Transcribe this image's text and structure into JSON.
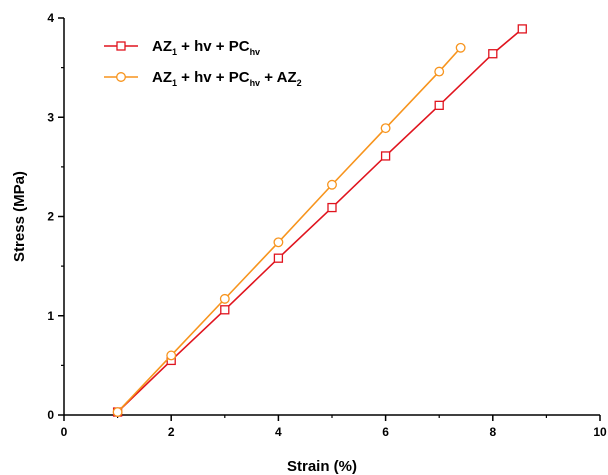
{
  "chart_data": {
    "type": "line",
    "xlabel": "Strain (%)",
    "ylabel": "Stress (MPa)",
    "xlim": [
      0,
      10
    ],
    "ylim": [
      0,
      4
    ],
    "xticks": [
      "0",
      "2",
      "4",
      "6",
      "8",
      "10"
    ],
    "yticks": [
      "0",
      "1",
      "2",
      "3",
      "4"
    ],
    "grid": false,
    "legend_position": "top-left",
    "series": [
      {
        "legend": {
          "base": "AZ",
          "sub1": "1",
          "mid": " + hv + PC",
          "sub2": "hv",
          "tail": "",
          "sub3": ""
        },
        "marker": "square",
        "color": "#e0141e",
        "x": [
          1,
          2,
          3,
          4,
          5,
          6,
          7,
          8,
          8.55
        ],
        "y": [
          0.03,
          0.55,
          1.06,
          1.58,
          2.09,
          2.61,
          3.12,
          3.64,
          3.89
        ]
      },
      {
        "legend": {
          "base": "AZ",
          "sub1": "1",
          "mid": " + hv + PC",
          "sub2": "hv",
          "tail": " + AZ",
          "sub3": "2"
        },
        "marker": "circle",
        "color": "#f7941d",
        "x": [
          1,
          2,
          3,
          4,
          5,
          6,
          7,
          7.4
        ],
        "y": [
          0.03,
          0.6,
          1.17,
          1.74,
          2.32,
          2.89,
          3.46,
          3.7
        ]
      }
    ]
  }
}
